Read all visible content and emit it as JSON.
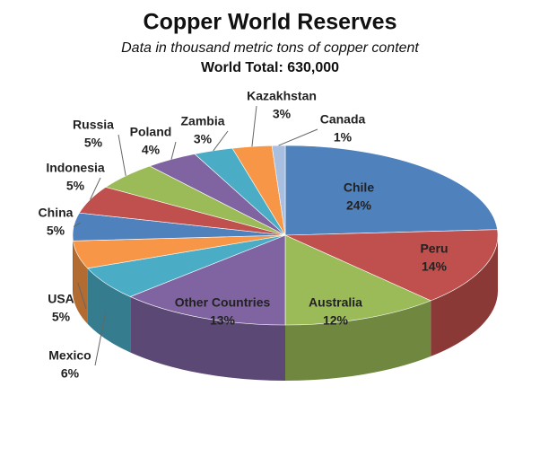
{
  "chart_data": {
    "type": "pie3d",
    "title": "Copper World Reserves",
    "subtitle": "Data in thousand metric tons of copper content",
    "annotation": "World Total: 630,000",
    "categories": [
      "Chile",
      "Peru",
      "Australia",
      "Other Countries",
      "Mexico",
      "USA",
      "China",
      "Indonesia",
      "Russia",
      "Poland",
      "Zambia",
      "Kazakhstan",
      "Canada"
    ],
    "values": [
      24,
      14,
      12,
      13,
      6,
      5,
      5,
      5,
      5,
      4,
      3,
      3,
      1
    ],
    "value_labels": [
      "24%",
      "14%",
      "12%",
      "13%",
      "6%",
      "5%",
      "5%",
      "5%",
      "5%",
      "4%",
      "3%",
      "3%",
      "1%"
    ],
    "colors": [
      "#4f81bd",
      "#c0504d",
      "#9bbb59",
      "#8064a2",
      "#4bacc6",
      "#f79646",
      "#4f81bd",
      "#c0504d",
      "#9bbb59",
      "#8064a2",
      "#4bacc6",
      "#f79646",
      "#a9bfe0"
    ]
  }
}
